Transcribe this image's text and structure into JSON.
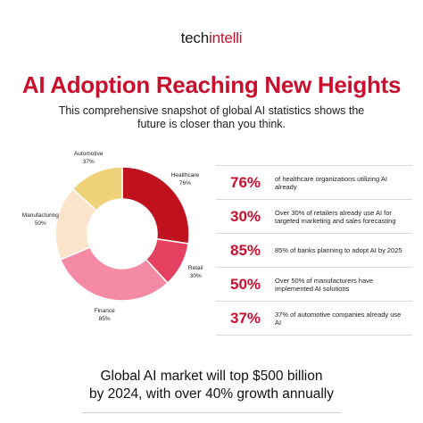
{
  "logo": {
    "part1": "tech",
    "part2": "intelli"
  },
  "title": "AI Adoption Reaching New Heights",
  "subtitle": "This comprehensive snapshot of global AI statistics shows the future is closer than you think.",
  "chart_data": {
    "type": "pie",
    "variant": "donut",
    "categories": [
      "Healthcare",
      "Retail",
      "Finance",
      "Manufacturing",
      "Automotive"
    ],
    "values": [
      76,
      30,
      85,
      50,
      37
    ],
    "value_labels": [
      "76%",
      "30%",
      "85%",
      "50%",
      "37%"
    ],
    "colors": [
      "#c0121e",
      "#e4405f",
      "#f48aa4",
      "#fde5cd",
      "#efd27a"
    ],
    "legend": "none"
  },
  "stats": [
    {
      "value": "76%",
      "text": "of healthcare organizations utilizing AI already"
    },
    {
      "value": "30%",
      "text": "Over 30% of retailers already use AI for targeted marketing and sales forecasting"
    },
    {
      "value": "85%",
      "text": "85% of banks planning to adopt AI by 2025"
    },
    {
      "value": "50%",
      "text": "Over 50% of manufacturers have implemented AI solutions"
    },
    {
      "value": "37%",
      "text": "37% of automotive companies already use AI"
    }
  ],
  "footer": {
    "line1": "Global AI market will top $500 billion",
    "line2": "by 2024, with over 40% growth annually"
  }
}
